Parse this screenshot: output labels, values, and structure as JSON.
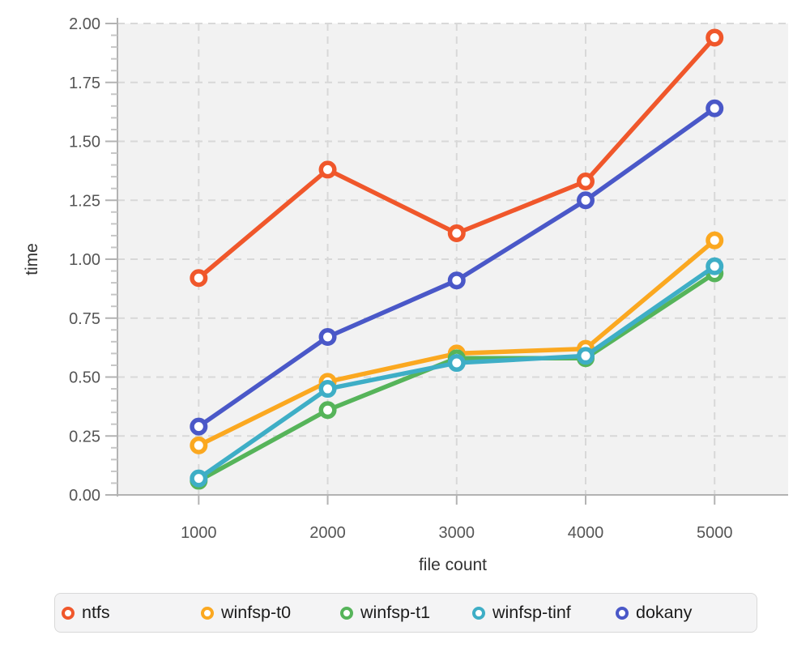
{
  "chart_data": {
    "type": "line",
    "title": "",
    "xlabel": "file count",
    "ylabel": "time",
    "x": [
      1000,
      2000,
      3000,
      4000,
      5000
    ],
    "x_tick_labels": [
      "1000",
      "2000",
      "3000",
      "4000",
      "5000"
    ],
    "y_tick_values": [
      0,
      0.25,
      0.5,
      0.75,
      1.0,
      1.25,
      1.5,
      1.75,
      2.0
    ],
    "y_tick_labels": [
      "0.00",
      "0.25",
      "0.50",
      "0.75",
      "1.00",
      "1.25",
      "1.50",
      "1.75",
      "2.00"
    ],
    "y_minor_step": 0.05,
    "xlim": [
      370,
      5570
    ],
    "ylim": [
      0,
      2.0
    ],
    "grid": "dashed",
    "marker": "open-circle",
    "legend_position": "bottom",
    "series": [
      {
        "name": "ntfs",
        "color": "#F0572B",
        "values": [
          0.92,
          1.38,
          1.11,
          1.33,
          1.94
        ]
      },
      {
        "name": "winfsp-t0",
        "color": "#FBA820",
        "values": [
          0.21,
          0.48,
          0.6,
          0.62,
          1.08
        ]
      },
      {
        "name": "winfsp-t1",
        "color": "#56B45A",
        "values": [
          0.06,
          0.36,
          0.58,
          0.58,
          0.94
        ]
      },
      {
        "name": "winfsp-tinf",
        "color": "#3EAEC6",
        "values": [
          0.07,
          0.45,
          0.56,
          0.59,
          0.97
        ]
      },
      {
        "name": "dokany",
        "color": "#4A58C8",
        "values": [
          0.29,
          0.67,
          0.91,
          1.25,
          1.64
        ]
      }
    ],
    "colors": {
      "panel_background": "#F2F2F2",
      "gridline": "#D8D8D8",
      "axis_line": "#B3B3B3",
      "minor_tick": "#C6C6C6",
      "tick_label": "#555555",
      "axis_title": "#333333",
      "legend_background": "#F4F4F5",
      "legend_border": "#D9D9D9",
      "legend_text": "#1C1C1C"
    }
  }
}
